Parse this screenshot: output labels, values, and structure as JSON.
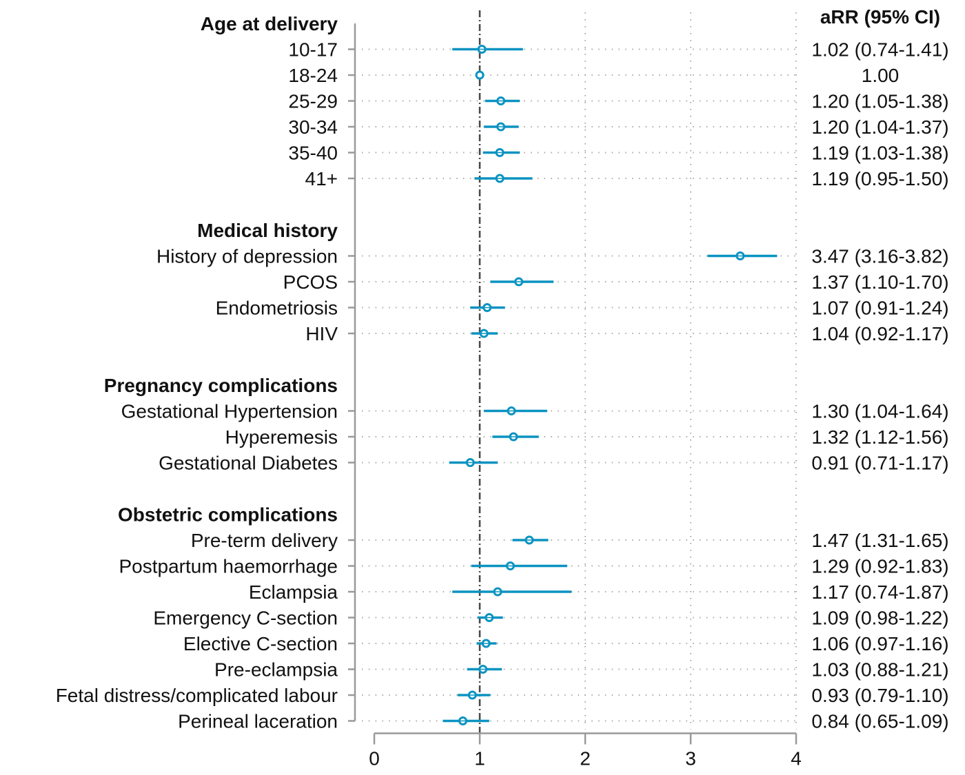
{
  "chart_data": {
    "type": "forest",
    "title": "",
    "column_header": "aRR (95% CI)",
    "xlabel": "",
    "xlim": [
      0,
      4
    ],
    "xticks": [
      "0",
      "1",
      "2",
      "3",
      "4"
    ],
    "reference_value": 1,
    "grid": true,
    "marker_color": "#0b93c1",
    "groups": [
      {
        "name": "Age at delivery",
        "rows": [
          {
            "label": "10-17",
            "est": 1.02,
            "lo": 0.74,
            "hi": 1.41,
            "text": "1.02 (0.74-1.41)"
          },
          {
            "label": "18-24",
            "est": 1.0,
            "lo": null,
            "hi": null,
            "text": "1.00"
          },
          {
            "label": "25-29",
            "est": 1.2,
            "lo": 1.05,
            "hi": 1.38,
            "text": "1.20 (1.05-1.38)"
          },
          {
            "label": "30-34",
            "est": 1.2,
            "lo": 1.04,
            "hi": 1.37,
            "text": "1.20 (1.04-1.37)"
          },
          {
            "label": "35-40",
            "est": 1.19,
            "lo": 1.03,
            "hi": 1.38,
            "text": "1.19 (1.03-1.38)"
          },
          {
            "label": "41+",
            "est": 1.19,
            "lo": 0.95,
            "hi": 1.5,
            "text": "1.19 (0.95-1.50)"
          }
        ]
      },
      {
        "name": "Medical history",
        "rows": [
          {
            "label": "History of depression",
            "est": 3.47,
            "lo": 3.16,
            "hi": 3.82,
            "text": "3.47 (3.16-3.82)"
          },
          {
            "label": "PCOS",
            "est": 1.37,
            "lo": 1.1,
            "hi": 1.7,
            "text": "1.37 (1.10-1.70)"
          },
          {
            "label": "Endometriosis",
            "est": 1.07,
            "lo": 0.91,
            "hi": 1.24,
            "text": "1.07 (0.91-1.24)"
          },
          {
            "label": "HIV",
            "est": 1.04,
            "lo": 0.92,
            "hi": 1.17,
            "text": "1.04 (0.92-1.17)"
          }
        ]
      },
      {
        "name": "Pregnancy complications",
        "rows": [
          {
            "label": "Gestational Hypertension",
            "est": 1.3,
            "lo": 1.04,
            "hi": 1.64,
            "text": "1.30 (1.04-1.64)"
          },
          {
            "label": "Hyperemesis",
            "est": 1.32,
            "lo": 1.12,
            "hi": 1.56,
            "text": "1.32 (1.12-1.56)"
          },
          {
            "label": "Gestational Diabetes",
            "est": 0.91,
            "lo": 0.71,
            "hi": 1.17,
            "text": "0.91 (0.71-1.17)"
          }
        ]
      },
      {
        "name": "Obstetric complications",
        "rows": [
          {
            "label": "Pre-term delivery",
            "est": 1.47,
            "lo": 1.31,
            "hi": 1.65,
            "text": "1.47 (1.31-1.65)"
          },
          {
            "label": "Postpartum haemorrhage",
            "est": 1.29,
            "lo": 0.92,
            "hi": 1.83,
            "text": "1.29 (0.92-1.83)"
          },
          {
            "label": "Eclampsia",
            "est": 1.17,
            "lo": 0.74,
            "hi": 1.87,
            "text": "1.17 (0.74-1.87)"
          },
          {
            "label": "Emergency C-section",
            "est": 1.09,
            "lo": 0.98,
            "hi": 1.22,
            "text": "1.09 (0.98-1.22)"
          },
          {
            "label": "Elective C-section",
            "est": 1.06,
            "lo": 0.97,
            "hi": 1.16,
            "text": "1.06 (0.97-1.16)"
          },
          {
            "label": "Pre-eclampsia",
            "est": 1.03,
            "lo": 0.88,
            "hi": 1.21,
            "text": "1.03 (0.88-1.21)"
          },
          {
            "label": "Fetal distress/complicated labour",
            "est": 0.93,
            "lo": 0.79,
            "hi": 1.1,
            "text": "0.93 (0.79-1.10)"
          },
          {
            "label": "Perineal laceration",
            "est": 0.84,
            "lo": 0.65,
            "hi": 1.09,
            "text": "0.84 (0.65-1.09)"
          }
        ]
      }
    ]
  }
}
